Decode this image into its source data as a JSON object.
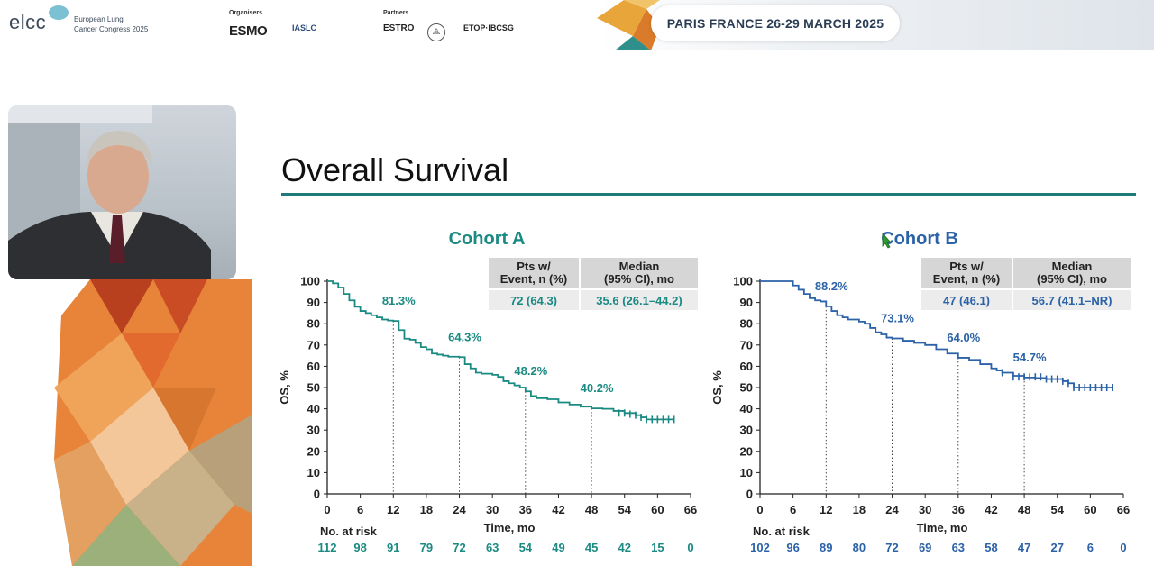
{
  "banner": {
    "logo_text": "elcc",
    "logo_sub1": "European Lung",
    "logo_sub2": "Cancer Congress 2025",
    "organisers_label": "Organisers",
    "organiser_1": "ESMO",
    "organiser_2": "IASLC",
    "partners_label": "Partners",
    "partner_1": "ESTRO",
    "partner_3": "ETOP·IBCSG",
    "venue": "PARIS FRANCE 26-29 MARCH 2025"
  },
  "slide": {
    "title": "Overall Survival"
  },
  "colors": {
    "cohort_a": "#1a8a82",
    "cohort_b": "#2b62a8",
    "table_header": "#d6d6d6",
    "table_value": "#ececec",
    "rule": "#1f7a7a"
  },
  "chart_data": [
    {
      "type": "line",
      "title": "Cohort A",
      "ylabel": "OS, %",
      "xlabel": "Time, mo",
      "xlim": [
        0,
        66
      ],
      "ylim": [
        0,
        100
      ],
      "x_ticks": [
        0,
        6,
        12,
        18,
        24,
        30,
        36,
        42,
        48,
        54,
        60,
        66
      ],
      "y_ticks": [
        0,
        10,
        20,
        30,
        40,
        50,
        60,
        70,
        80,
        90,
        100
      ],
      "curve": [
        [
          0,
          100
        ],
        [
          1,
          99
        ],
        [
          2,
          97
        ],
        [
          3,
          94
        ],
        [
          4,
          91
        ],
        [
          5,
          88
        ],
        [
          6,
          86
        ],
        [
          7,
          85
        ],
        [
          8,
          84
        ],
        [
          9,
          83
        ],
        [
          10,
          82
        ],
        [
          11,
          81.5
        ],
        [
          12,
          81.3
        ],
        [
          13,
          77
        ],
        [
          14,
          73
        ],
        [
          15,
          72.5
        ],
        [
          16,
          71
        ],
        [
          17,
          69
        ],
        [
          18,
          68
        ],
        [
          19,
          66
        ],
        [
          20,
          65.5
        ],
        [
          21,
          65
        ],
        [
          22,
          64.5
        ],
        [
          24,
          64.3
        ],
        [
          25,
          61
        ],
        [
          26,
          59
        ],
        [
          27,
          57
        ],
        [
          28,
          56.5
        ],
        [
          30,
          56
        ],
        [
          31,
          55
        ],
        [
          32,
          53
        ],
        [
          33,
          52
        ],
        [
          34,
          51
        ],
        [
          35,
          50
        ],
        [
          36,
          48.2
        ],
        [
          37,
          46
        ],
        [
          38,
          45
        ],
        [
          40,
          44.5
        ],
        [
          42,
          43
        ],
        [
          44,
          42
        ],
        [
          46,
          41
        ],
        [
          48,
          40.2
        ],
        [
          50,
          40
        ],
        [
          52,
          39
        ],
        [
          54,
          38
        ],
        [
          56,
          37
        ],
        [
          57,
          36
        ],
        [
          58,
          35
        ],
        [
          60,
          35
        ],
        [
          63,
          35
        ]
      ],
      "censor_marks": [
        [
          53,
          38
        ],
        [
          54,
          38
        ],
        [
          55,
          37.5
        ],
        [
          56,
          37
        ],
        [
          57,
          36
        ],
        [
          58,
          35
        ],
        [
          59,
          35
        ],
        [
          60,
          35
        ],
        [
          61,
          35
        ],
        [
          62,
          35
        ],
        [
          63,
          35
        ]
      ],
      "landmarks": [
        {
          "x": 12,
          "y": 81.3,
          "label": "81.3%"
        },
        {
          "x": 24,
          "y": 64.3,
          "label": "64.3%"
        },
        {
          "x": 36,
          "y": 48.2,
          "label": "48.2%"
        },
        {
          "x": 48,
          "y": 40.2,
          "label": "40.2%"
        }
      ],
      "table": {
        "col1_header": "Pts w/ Event, n (%)",
        "col2_header": "Median (95% CI), mo",
        "col1_value": "72 (64.3)",
        "col2_value": "35.6 (26.1–44.2)"
      },
      "at_risk_label": "No. at risk",
      "at_risk": [
        "112",
        "98",
        "91",
        "79",
        "72",
        "63",
        "54",
        "49",
        "45",
        "42",
        "15",
        "0"
      ]
    },
    {
      "type": "line",
      "title": "Cohort B",
      "ylabel": "OS, %",
      "xlabel": "Time, mo",
      "xlim": [
        0,
        66
      ],
      "ylim": [
        0,
        100
      ],
      "x_ticks": [
        0,
        6,
        12,
        18,
        24,
        30,
        36,
        42,
        48,
        54,
        60,
        66
      ],
      "y_ticks": [
        0,
        10,
        20,
        30,
        40,
        50,
        60,
        70,
        80,
        90,
        100
      ],
      "curve": [
        [
          0,
          100
        ],
        [
          5,
          100
        ],
        [
          6,
          98
        ],
        [
          7,
          96
        ],
        [
          8,
          94
        ],
        [
          9,
          92
        ],
        [
          10,
          91
        ],
        [
          11,
          90.5
        ],
        [
          12,
          88.2
        ],
        [
          13,
          86
        ],
        [
          14,
          84
        ],
        [
          15,
          83
        ],
        [
          16,
          82
        ],
        [
          18,
          81
        ],
        [
          19,
          80
        ],
        [
          20,
          78
        ],
        [
          21,
          76
        ],
        [
          22,
          75
        ],
        [
          23,
          73.5
        ],
        [
          24,
          73.1
        ],
        [
          26,
          72
        ],
        [
          28,
          71
        ],
        [
          30,
          70
        ],
        [
          32,
          68
        ],
        [
          34,
          66
        ],
        [
          36,
          64.0
        ],
        [
          38,
          63
        ],
        [
          40,
          61
        ],
        [
          42,
          59
        ],
        [
          43,
          58
        ],
        [
          44,
          57
        ],
        [
          46,
          55.5
        ],
        [
          48,
          54.7
        ],
        [
          50,
          54.5
        ],
        [
          52,
          54
        ],
        [
          54,
          54
        ],
        [
          55,
          53
        ],
        [
          56,
          52
        ],
        [
          57,
          50
        ],
        [
          60,
          50
        ],
        [
          64,
          50
        ]
      ],
      "censor_marks": [
        [
          44,
          57
        ],
        [
          46,
          55
        ],
        [
          47,
          55
        ],
        [
          48,
          55
        ],
        [
          49,
          55
        ],
        [
          50,
          55
        ],
        [
          51,
          55
        ],
        [
          52,
          54
        ],
        [
          53,
          54
        ],
        [
          54,
          54
        ],
        [
          55,
          53
        ],
        [
          56,
          52
        ],
        [
          57,
          50
        ],
        [
          58,
          50
        ],
        [
          59,
          50
        ],
        [
          60,
          50
        ],
        [
          61,
          50
        ],
        [
          62,
          50
        ],
        [
          63,
          50
        ],
        [
          64,
          50
        ]
      ],
      "landmarks": [
        {
          "x": 12,
          "y": 88.2,
          "label": "88.2%"
        },
        {
          "x": 24,
          "y": 73.1,
          "label": "73.1%"
        },
        {
          "x": 36,
          "y": 64.0,
          "label": "64.0%"
        },
        {
          "x": 48,
          "y": 54.7,
          "label": "54.7%"
        }
      ],
      "table": {
        "col1_header": "Pts w/ Event, n (%)",
        "col2_header": "Median (95% CI), mo",
        "col1_value": "47 (46.1)",
        "col2_value": "56.7 (41.1–NR)"
      },
      "at_risk_label": "No. at risk",
      "at_risk": [
        "102",
        "96",
        "89",
        "80",
        "72",
        "69",
        "63",
        "58",
        "47",
        "27",
        "6",
        "0"
      ]
    }
  ]
}
